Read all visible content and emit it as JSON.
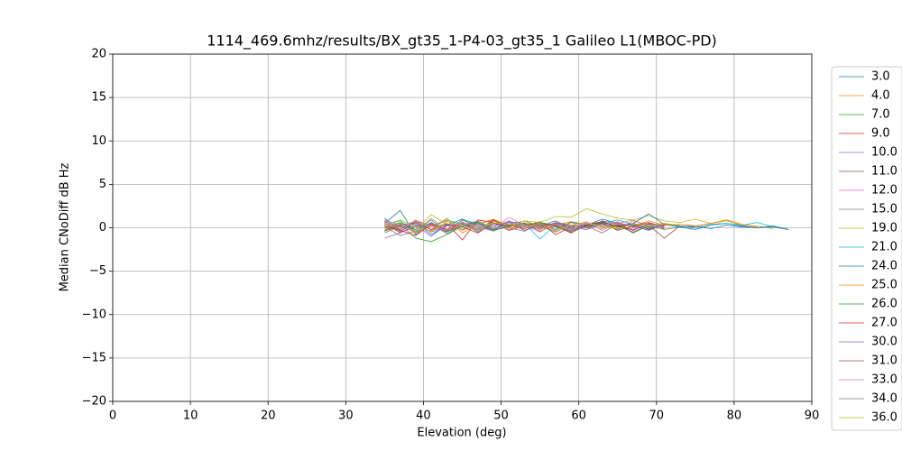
{
  "chart_data": {
    "type": "line",
    "title": "1114_469.6mhz/results/BX_gt35_1-P4-03_gt35_1 Galileo L1(MBOC-PD)",
    "x_label": "Elevation (deg)",
    "y_label": "Median CNoDiff dB Hz",
    "xlim": [
      0,
      90
    ],
    "ylim": [
      -20,
      20
    ],
    "xticks": [
      0,
      10,
      20,
      30,
      40,
      50,
      60,
      70,
      80,
      90
    ],
    "yticks": [
      {
        "value": -20,
        "label": "−20"
      },
      {
        "value": -15,
        "label": "−15"
      },
      {
        "value": -10,
        "label": "−10"
      },
      {
        "value": -5,
        "label": "−5"
      },
      0,
      5,
      10,
      15,
      20
    ],
    "grid": true,
    "legend": "outside right",
    "x": [
      35,
      37,
      39,
      41,
      43,
      45,
      47,
      49,
      51,
      53,
      55,
      57,
      59,
      61,
      63,
      65,
      67,
      69,
      71,
      73,
      75,
      77,
      79,
      81,
      83,
      85,
      87
    ],
    "series": [
      {
        "name": "3.0",
        "color": "#1f77b4",
        "values": [
          0.5,
          2.0,
          -0.8,
          0.6,
          -0.4,
          0.9,
          0.2,
          -0.3,
          0.7,
          0.1,
          0.4,
          -0.2,
          0.6,
          0.3,
          1.0,
          0.5,
          0.2,
          -0.3,
          0.4,
          0.1,
          -0.2,
          0.3,
          0.5,
          0.2,
          0.0,
          0.1,
          -0.2
        ]
      },
      {
        "name": "4.0",
        "color": "#ff7f0e",
        "values": [
          0.2,
          -0.5,
          0.8,
          -0.3,
          1.1,
          -0.6,
          0.4,
          0.9,
          -0.2,
          0.5,
          0.3,
          -0.4,
          0.7,
          0.2,
          0.6,
          -0.1,
          0.8,
          0.3,
          0.5,
          0.2,
          null,
          null,
          null,
          null,
          null,
          null,
          null
        ]
      },
      {
        "name": "7.0",
        "color": "#2ca02c",
        "values": [
          -0.3,
          0.4,
          -1.2,
          -1.6,
          -0.8,
          0.2,
          0.6,
          -0.4,
          0.3,
          0.8,
          0.1,
          0.5,
          -0.2,
          0.4,
          0.7,
          0.2,
          -0.5,
          0.3,
          0.1,
          null,
          null,
          null,
          null,
          null,
          null,
          null,
          null
        ]
      },
      {
        "name": "9.0",
        "color": "#d62728",
        "values": [
          0.8,
          -0.6,
          0.2,
          -0.4,
          0.5,
          -1.4,
          0.9,
          0.6,
          -0.3,
          0.2,
          0.7,
          -0.8,
          0.1,
          0.4,
          0.6,
          0.2,
          -0.3,
          0.5,
          0.0,
          null,
          null,
          null,
          null,
          null,
          null,
          null,
          null
        ]
      },
      {
        "name": "10.0",
        "color": "#9467bd",
        "values": [
          -1.2,
          -0.6,
          0.3,
          -1.0,
          0.4,
          -0.2,
          0.5,
          0.1,
          0.8,
          -0.3,
          0.4,
          0.2,
          -0.5,
          0.6,
          0.1,
          0.3,
          -0.2,
          0.4,
          0.2,
          null,
          null,
          null,
          null,
          null,
          null,
          null,
          null
        ]
      },
      {
        "name": "11.0",
        "color": "#8c564b",
        "values": [
          0.4,
          -0.2,
          0.7,
          0.3,
          -0.5,
          0.6,
          -0.3,
          0.9,
          0.2,
          0.5,
          -0.4,
          0.3,
          0.1,
          -0.2,
          0.8,
          0.4,
          -0.6,
          0.3,
          -1.2,
          0.2,
          0.1,
          null,
          null,
          null,
          null,
          null,
          null
        ]
      },
      {
        "name": "12.0",
        "color": "#e377c2",
        "values": [
          0.9,
          0.3,
          -0.6,
          1.1,
          -0.2,
          0.4,
          0.8,
          -0.1,
          1.2,
          0.3,
          -0.5,
          0.6,
          0.2,
          0.7,
          -0.3,
          0.5,
          0.9,
          0.1,
          0.4,
          null,
          null,
          null,
          null,
          null,
          null,
          null,
          null
        ]
      },
      {
        "name": "15.0",
        "color": "#7f7f7f",
        "values": [
          0.1,
          -0.9,
          -0.4,
          0.5,
          -0.7,
          0.3,
          -0.2,
          0.6,
          0.0,
          -0.4,
          0.5,
          0.1,
          -0.3,
          0.2,
          -0.6,
          0.4,
          0.1,
          0.3,
          -0.2,
          0.1,
          null,
          null,
          null,
          null,
          null,
          null,
          null
        ]
      },
      {
        "name": "19.0",
        "color": "#bcbd22",
        "values": [
          0.6,
          0.2,
          -0.3,
          1.5,
          0.4,
          0.7,
          -0.1,
          0.5,
          0.3,
          0.8,
          0.6,
          1.3,
          1.2,
          2.2,
          1.6,
          1.1,
          0.9,
          1.4,
          0.8,
          0.6,
          1.0,
          0.5,
          0.8,
          0.3,
          0.2,
          -0.1,
          null
        ]
      },
      {
        "name": "21.0",
        "color": "#17becf",
        "values": [
          0.3,
          0.8,
          -0.5,
          0.2,
          0.9,
          0.4,
          -0.3,
          0.6,
          0.1,
          0.5,
          -1.3,
          0.3,
          0.7,
          0.2,
          0.5,
          0.9,
          0.4,
          0.1,
          0.3,
          0.2,
          0.0,
          0.4,
          0.5,
          0.3,
          0.6,
          0.1,
          null
        ]
      },
      {
        "name": "24.0",
        "color": "#1f77b4",
        "values": [
          1.1,
          -0.4,
          0.6,
          -0.8,
          0.3,
          1.0,
          0.4,
          -0.2,
          0.7,
          0.5,
          0.2,
          0.8,
          -0.1,
          0.3,
          0.6,
          0.2,
          0.5,
          1.6,
          0.4,
          0.1,
          0.2,
          -0.1,
          0.3,
          0.1,
          0.0,
          0.2,
          -0.2
        ]
      },
      {
        "name": "25.0",
        "color": "#ff7f0e",
        "values": [
          -0.2,
          0.5,
          -0.6,
          0.2,
          0.8,
          -0.3,
          0.4,
          1.0,
          0.2,
          0.6,
          -0.2,
          0.3,
          0.7,
          0.4,
          -0.1,
          0.5,
          0.2,
          0.8,
          0.3,
          0.4,
          0.2,
          0.5,
          0.9,
          0.4,
          0.1,
          null,
          null
        ]
      },
      {
        "name": "26.0",
        "color": "#2ca02c",
        "values": [
          0.0,
          0.6,
          -0.2,
          0.9,
          -0.5,
          0.3,
          0.7,
          -0.2,
          0.4,
          0.1,
          0.6,
          0.3,
          -0.4,
          0.2,
          0.5,
          0.1,
          0.3,
          0.0,
          0.2,
          null,
          null,
          null,
          null,
          null,
          null,
          null,
          null
        ]
      },
      {
        "name": "27.0",
        "color": "#d62728",
        "values": [
          0.2,
          -0.3,
          -0.9,
          0.4,
          -0.2,
          0.6,
          -0.5,
          0.8,
          0.3,
          -0.1,
          0.5,
          0.2,
          -0.6,
          0.3,
          0.7,
          0.1,
          0.4,
          -0.2,
          0.3,
          null,
          null,
          null,
          null,
          null,
          null,
          null,
          null
        ]
      },
      {
        "name": "30.0",
        "color": "#9467bd",
        "values": [
          0.7,
          0.1,
          0.4,
          -0.5,
          0.2,
          0.5,
          -0.1,
          0.3,
          0.6,
          -0.3,
          0.2,
          0.5,
          0.1,
          -0.2,
          0.4,
          0.6,
          0.2,
          -0.1,
          0.3,
          null,
          null,
          null,
          null,
          null,
          null,
          null,
          null
        ]
      },
      {
        "name": "31.0",
        "color": "#8c564b",
        "values": [
          -0.4,
          0.3,
          0.6,
          -0.2,
          0.4,
          0.1,
          -0.6,
          0.5,
          0.2,
          0.4,
          -0.1,
          0.6,
          0.3,
          0.1,
          0.5,
          -0.3,
          0.2,
          0.6,
          0.1,
          null,
          null,
          null,
          null,
          null,
          null,
          null,
          null
        ]
      },
      {
        "name": "33.0",
        "color": "#e377c2",
        "values": [
          0.5,
          -0.1,
          0.9,
          0.2,
          -0.3,
          0.5,
          0.1,
          -0.4,
          0.6,
          0.3,
          0.0,
          0.4,
          -0.2,
          0.5,
          0.2,
          0.7,
          0.0,
          0.3,
          0.1,
          null,
          null,
          null,
          null,
          null,
          null,
          null,
          null
        ]
      },
      {
        "name": "34.0",
        "color": "#7f7f7f",
        "values": [
          -0.6,
          0.2,
          -0.2,
          0.6,
          -0.4,
          0.2,
          0.5,
          -0.3,
          0.1,
          0.4,
          0.2,
          -0.5,
          0.3,
          0.0,
          0.4,
          -0.2,
          0.5,
          0.1,
          -0.1,
          null,
          null,
          null,
          null,
          null,
          null,
          null,
          null
        ]
      },
      {
        "name": "36.0",
        "color": "#bcbd22",
        "values": [
          0.3,
          0.9,
          0.1,
          -0.4,
          0.7,
          0.2,
          -0.2,
          0.6,
          0.4,
          0.1,
          0.5,
          -0.3,
          0.3,
          0.6,
          0.2,
          -0.1,
          0.4,
          0.2,
          0.5,
          0.3,
          null,
          null,
          null,
          null,
          null,
          null,
          null
        ]
      }
    ]
  }
}
